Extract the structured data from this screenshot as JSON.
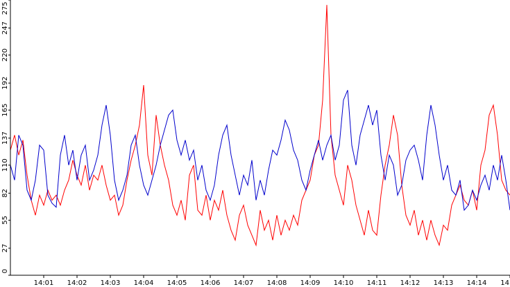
{
  "chart_data": {
    "type": "line",
    "categories": [
      null,
      null,
      null,
      null,
      null,
      null,
      null,
      null,
      "14:01",
      null,
      null,
      null,
      null,
      null,
      null,
      null,
      "14:02",
      null,
      null,
      null,
      null,
      null,
      null,
      null,
      "14:03",
      null,
      null,
      null,
      null,
      null,
      null,
      null,
      "14:04",
      null,
      null,
      null,
      null,
      null,
      null,
      null,
      "14:05",
      null,
      null,
      null,
      null,
      null,
      null,
      null,
      "14:06",
      null,
      null,
      null,
      null,
      null,
      null,
      null,
      "14:07",
      null,
      null,
      null,
      null,
      null,
      null,
      null,
      "14:08",
      null,
      null,
      null,
      null,
      null,
      null,
      null,
      "14:09",
      null,
      null,
      null,
      null,
      null,
      null,
      null,
      "14:10",
      null,
      null,
      null,
      null,
      null,
      null,
      null,
      "14:11",
      null,
      null,
      null,
      null,
      null,
      null,
      null,
      "14:12",
      null,
      null,
      null,
      null,
      null,
      null,
      null,
      "14:13",
      null,
      null,
      null,
      null,
      null,
      null,
      null,
      "14:14",
      null,
      null,
      null,
      null,
      null,
      null,
      null,
      "14"
    ],
    "series": [
      {
        "color": "#ff0000",
        "values": [
          125,
          140,
          120,
          135,
          100,
          75,
          60,
          80,
          70,
          85,
          75,
          80,
          70,
          85,
          95,
          115,
          100,
          90,
          110,
          85,
          100,
          95,
          110,
          90,
          75,
          80,
          60,
          70,
          95,
          115,
          130,
          150,
          190,
          120,
          100,
          160,
          130,
          110,
          95,
          70,
          60,
          75,
          55,
          100,
          110,
          65,
          60,
          80,
          55,
          75,
          65,
          85,
          60,
          45,
          35,
          60,
          70,
          50,
          40,
          30,
          65,
          45,
          55,
          35,
          60,
          40,
          55,
          45,
          60,
          50,
          75,
          85,
          95,
          120,
          130,
          175,
          270,
          140,
          100,
          85,
          70,
          110,
          95,
          70,
          55,
          40,
          65,
          45,
          40,
          80,
          110,
          130,
          160,
          140,
          90,
          60,
          50,
          65,
          40,
          55,
          35,
          55,
          40,
          30,
          50,
          45,
          70,
          80,
          90,
          75,
          70,
          85,
          65,
          110,
          125,
          160,
          170,
          140,
          95,
          85,
          80
        ]
      },
      {
        "color": "#0000cc",
        "values": [
          110,
          95,
          140,
          130,
          85,
          75,
          95,
          130,
          125,
          80,
          72,
          68,
          120,
          140,
          110,
          125,
          95,
          120,
          130,
          95,
          105,
          120,
          150,
          170,
          140,
          95,
          75,
          85,
          100,
          130,
          140,
          110,
          90,
          80,
          95,
          110,
          130,
          145,
          160,
          165,
          135,
          120,
          135,
          115,
          125,
          95,
          110,
          85,
          75,
          90,
          120,
          140,
          150,
          120,
          100,
          80,
          100,
          90,
          115,
          75,
          95,
          80,
          105,
          125,
          120,
          135,
          155,
          145,
          125,
          115,
          95,
          85,
          105,
          120,
          135,
          115,
          130,
          140,
          115,
          130,
          175,
          185,
          130,
          110,
          140,
          155,
          170,
          150,
          165,
          120,
          95,
          120,
          110,
          80,
          90,
          115,
          125,
          130,
          115,
          95,
          140,
          170,
          150,
          120,
          95,
          110,
          85,
          80,
          95,
          65,
          70,
          85,
          75,
          90,
          100,
          85,
          110,
          95,
          120,
          95,
          65
        ]
      }
    ],
    "ylim": [
      0,
      275
    ],
    "yticks": [
      0,
      27,
      55,
      82,
      110,
      137,
      165,
      192,
      220,
      247,
      275
    ]
  }
}
